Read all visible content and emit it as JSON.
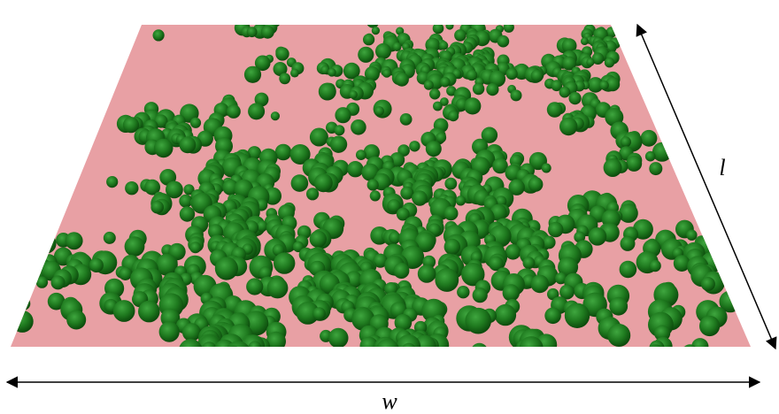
{
  "labels": {
    "length": "l",
    "width": "w"
  }
}
